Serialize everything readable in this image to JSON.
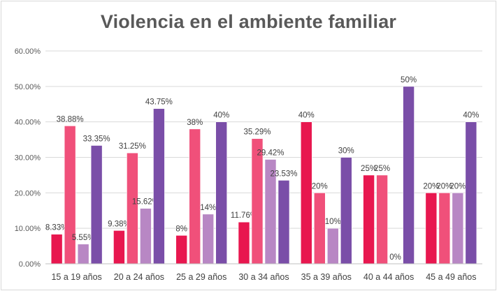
{
  "chart_data": {
    "type": "bar",
    "title": "Violencia en el ambiente familiar",
    "categories": [
      "15 a 19 años",
      "20 a 24 años",
      "25 a 29 años",
      "30 a 34 años",
      "35 a 39 años",
      "40 a 44 años",
      "45 a 49 años"
    ],
    "ylim": [
      0,
      60
    ],
    "yticks": [
      "0.00%",
      "10.00%",
      "20.00%",
      "30.00%",
      "40.00%",
      "50.00%",
      "60.00%"
    ],
    "grid": true,
    "series": [
      {
        "color": "#e8174f",
        "values": [
          8.33,
          9.38,
          8,
          11.76,
          40,
          25,
          20
        ],
        "labels": [
          "8.33%",
          "9.38%",
          "8%",
          "11.76%",
          "40%",
          "25%",
          "20%"
        ]
      },
      {
        "color": "#f0507a",
        "values": [
          38.88,
          31.25,
          38,
          35.29,
          20,
          25,
          20
        ],
        "labels": [
          "38.88%",
          "31.25%",
          "38%",
          "35.29%",
          "20%",
          "25%",
          "20%"
        ]
      },
      {
        "color": "#b887c4",
        "values": [
          5.55,
          15.62,
          14,
          29.42,
          10,
          0,
          20
        ],
        "labels": [
          "5.55%",
          "15.62%",
          "14%",
          "29.42%",
          "10%",
          "0%",
          "20%"
        ]
      },
      {
        "color": "#7a4ea8",
        "values": [
          33.35,
          43.75,
          40,
          23.53,
          30,
          50,
          40
        ],
        "labels": [
          "33.35%",
          "43.75%",
          "40%",
          "23.53%",
          "30%",
          "50%",
          "40%"
        ]
      }
    ]
  }
}
